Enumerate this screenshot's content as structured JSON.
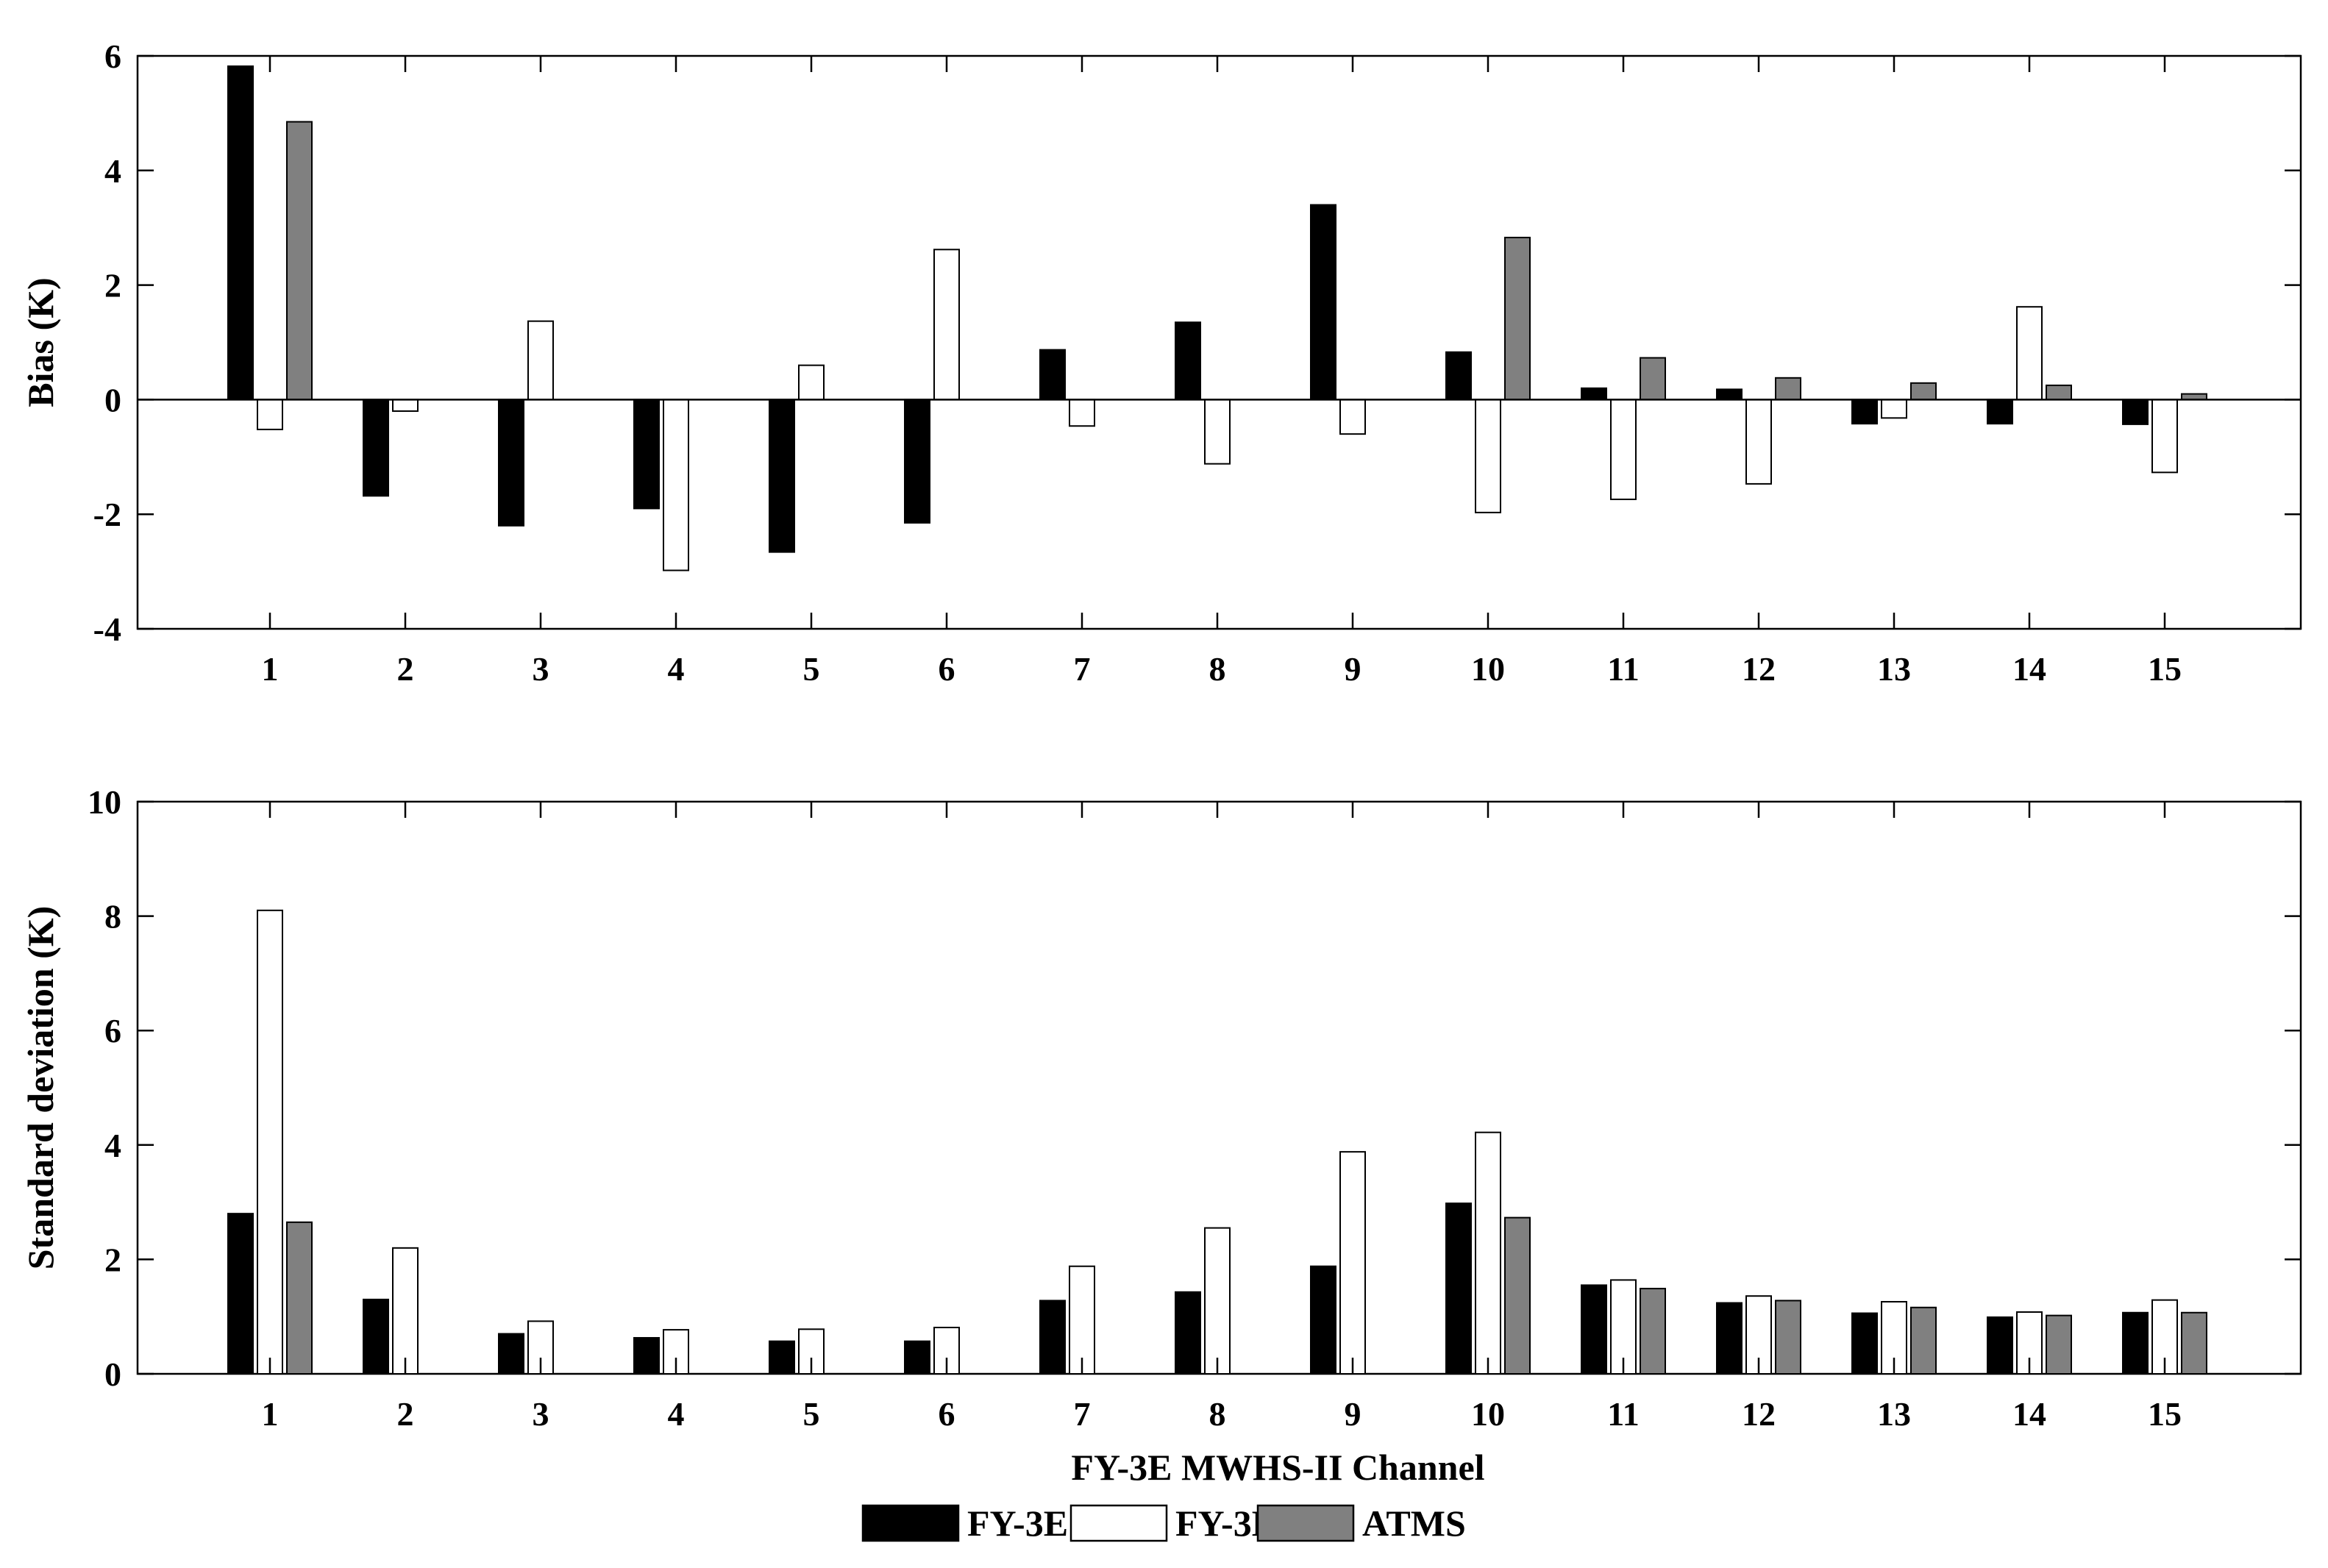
{
  "chart_data": [
    {
      "type": "bar",
      "ylabel": "Bias (K)",
      "xlabel": "",
      "ylim": [
        -4,
        6
      ],
      "yticks": [
        "-4",
        "-2",
        "0",
        "2",
        "4",
        "6"
      ],
      "categories": [
        "1",
        "2",
        "3",
        "4",
        "5",
        "6",
        "7",
        "8",
        "9",
        "10",
        "11",
        "12",
        "13",
        "14",
        "15"
      ],
      "grid": false,
      "series": [
        {
          "name": "FY-3E",
          "color": "#000000",
          "values": [
            5.82,
            -1.68,
            -2.2,
            -1.9,
            -2.66,
            -2.15,
            0.87,
            1.35,
            3.4,
            0.83,
            0.2,
            0.18,
            -0.42,
            -0.42,
            -0.43
          ]
        },
        {
          "name": "FY-3D",
          "color": "#ffffff",
          "values": [
            -0.52,
            -0.2,
            1.37,
            -2.98,
            0.6,
            2.62,
            -0.46,
            -1.12,
            -0.6,
            -1.97,
            -1.74,
            -1.47,
            -0.32,
            1.62,
            -1.27
          ]
        },
        {
          "name": "ATMS",
          "color": "#808080",
          "values": [
            4.85,
            0,
            0,
            0,
            0,
            0,
            0,
            0,
            0,
            2.83,
            0.73,
            0.38,
            0.29,
            0.25,
            0.1
          ]
        }
      ]
    },
    {
      "type": "bar",
      "ylabel": "Standard deviation (K)",
      "xlabel": "FY-3E MWHS-II Channel",
      "ylim": [
        0,
        10
      ],
      "yticks": [
        "0",
        "2",
        "4",
        "6",
        "8",
        "10"
      ],
      "categories": [
        "1",
        "2",
        "3",
        "4",
        "5",
        "6",
        "7",
        "8",
        "9",
        "10",
        "11",
        "12",
        "13",
        "14",
        "15"
      ],
      "grid": false,
      "series": [
        {
          "name": "FY-3E",
          "color": "#000000",
          "values": [
            2.8,
            1.3,
            0.7,
            0.63,
            0.57,
            0.57,
            1.28,
            1.43,
            1.88,
            2.98,
            1.55,
            1.24,
            1.06,
            0.99,
            1.07
          ]
        },
        {
          "name": "FY-3D",
          "color": "#ffffff",
          "values": [
            8.1,
            2.2,
            0.92,
            0.77,
            0.78,
            0.81,
            1.88,
            2.55,
            3.88,
            4.22,
            1.64,
            1.36,
            1.26,
            1.08,
            1.29
          ]
        },
        {
          "name": "ATMS",
          "color": "#808080",
          "values": [
            2.65,
            0,
            0,
            0,
            0,
            0,
            0,
            0,
            0,
            2.73,
            1.49,
            1.28,
            1.16,
            1.02,
            1.07
          ]
        }
      ]
    }
  ],
  "legend": {
    "position": "bottom-center",
    "entries": [
      {
        "label": "FY-3E",
        "color": "#000000"
      },
      {
        "label": "FY-3D",
        "color": "#ffffff"
      },
      {
        "label": "ATMS",
        "color": "#808080"
      }
    ]
  }
}
